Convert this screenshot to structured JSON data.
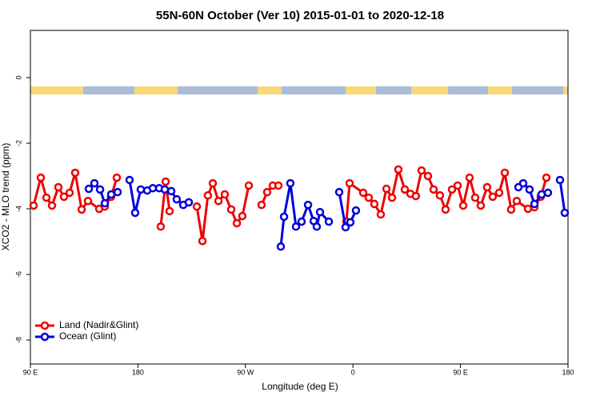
{
  "chart_data": {
    "type": "line",
    "title": "55N-60N October (Ver 10)   2015-01-01 to 2020-12-18",
    "x_label": "Longitude (deg E)",
    "y_label": "XCO2 - MLO trend (ppm)",
    "xlim": [
      90,
      540
    ],
    "ylim": [
      -8.73,
      1.44
    ],
    "xticks": [
      {
        "value": 90,
        "label": "90 E"
      },
      180,
      {
        "value": 270,
        "label": "90 W"
      },
      {
        "value": 360,
        "label": "0"
      },
      {
        "value": 450,
        "label": "90 E"
      },
      {
        "value": 540,
        "label": "180"
      }
    ],
    "yticks": [
      0,
      -2,
      -4,
      -6,
      -8
    ],
    "legend": "bottom-left",
    "series": [
      {
        "name": "Land (Nadir&Glint)",
        "color": "#ee0000",
        "x": [
          92.7,
          98.7,
          103.4,
          108.1,
          113.4,
          118.1,
          122.8,
          127.5,
          132.9,
          138.2,
          147.6,
          152.3,
          157.6,
          162.3,
          null,
          199.1,
          203.2,
          206.5,
          null,
          229.3,
          234.0,
          238.6,
          242.7,
          247.4,
          252.7,
          258.1,
          262.8,
          267.4,
          272.8,
          null,
          283.5,
          288.2,
          292.9,
          297.6,
          null,
          354.5,
          357.2,
          368.6,
          373.2,
          377.9,
          383.3,
          388.0,
          392.7,
          398.0,
          403.4,
          408.1,
          412.7,
          417.4,
          422.8,
          427.5,
          432.8,
          437.5,
          442.9,
          447.6,
          452.3,
          457.6,
          462.3,
          467.0,
          472.3,
          477.0,
          482.4,
          487.1,
          492.4,
          497.1,
          506.5,
          511.9,
          517.2,
          521.9
        ],
        "values": [
          -3.9,
          -3.05,
          -3.66,
          -3.9,
          -3.34,
          -3.63,
          -3.51,
          -2.9,
          -4.02,
          -3.76,
          -4.0,
          -3.93,
          -3.63,
          -3.05,
          null,
          -4.54,
          -3.17,
          -4.07,
          null,
          -3.93,
          -4.98,
          -3.59,
          -3.22,
          -3.76,
          -3.56,
          -4.02,
          -4.44,
          -4.22,
          -3.29,
          null,
          -3.88,
          -3.49,
          -3.29,
          -3.29,
          null,
          -4.39,
          -3.22,
          -3.51,
          -3.66,
          -3.85,
          -4.17,
          -3.39,
          -3.66,
          -2.8,
          -3.41,
          -3.54,
          -3.61,
          -2.83,
          -3.0,
          -3.41,
          -3.59,
          -4.02,
          -3.41,
          -3.29,
          -3.9,
          -3.05,
          -3.66,
          -3.9,
          -3.34,
          -3.63,
          -3.51,
          -2.9,
          -4.02,
          -3.76,
          -4.0,
          -3.95,
          -3.63,
          -3.05
        ]
      },
      {
        "name": "Ocean (Glint)",
        "color": "#0000dd",
        "x": [
          138.9,
          143.6,
          148.3,
          152.3,
          157.6,
          163.0,
          null,
          173.0,
          177.7,
          182.4,
          187.8,
          192.5,
          197.8,
          202.5,
          207.9,
          212.5,
          217.9,
          222.6,
          null,
          299.6,
          302.3,
          307.6,
          312.3,
          317.0,
          322.4,
          327.1,
          329.7,
          332.4,
          339.8,
          null,
          348.5,
          353.8,
          357.8,
          362.5,
          null,
          498.5,
          502.5,
          507.8,
          511.9,
          517.9,
          523.2,
          null,
          533.3,
          537.3
        ],
        "values": [
          -3.39,
          -3.22,
          -3.41,
          -3.83,
          -3.56,
          -3.49,
          null,
          -3.12,
          -4.12,
          -3.41,
          -3.44,
          -3.37,
          -3.37,
          -3.41,
          -3.46,
          -3.71,
          -3.88,
          -3.8,
          null,
          -5.15,
          -4.24,
          -3.22,
          -4.54,
          -4.39,
          -3.88,
          -4.37,
          -4.54,
          -4.1,
          -4.39,
          null,
          -3.49,
          -4.56,
          -4.41,
          -4.05,
          null,
          -3.34,
          -3.22,
          -3.41,
          -3.85,
          -3.56,
          -3.51,
          null,
          -3.12,
          -4.12
        ]
      }
    ]
  }
}
